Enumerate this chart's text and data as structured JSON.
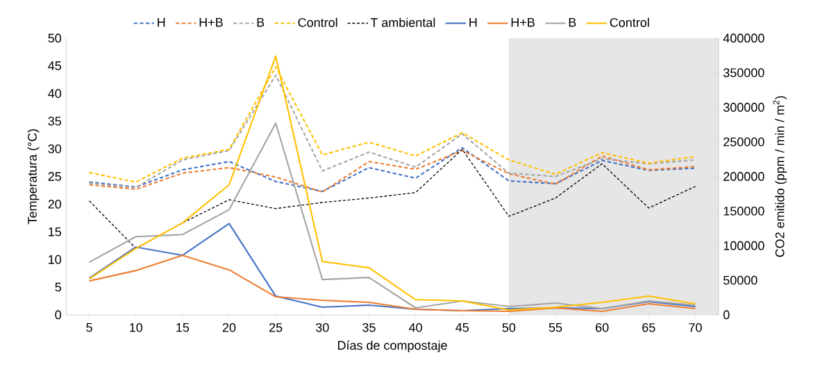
{
  "chart_data": {
    "type": "line",
    "xlabel": "Días de compostaje",
    "ylabel": "Temperatura (°C)",
    "y2label": "CO2 emitido (ppm / min / m$^{2}$)",
    "x": [
      5,
      10,
      15,
      20,
      25,
      30,
      35,
      40,
      45,
      50,
      55,
      60,
      65,
      70
    ],
    "xlim": [
      2.5,
      72.5
    ],
    "xticks": [
      5,
      10,
      15,
      20,
      25,
      30,
      35,
      40,
      45,
      50,
      55,
      60,
      65,
      70
    ],
    "ylim": [
      0,
      50
    ],
    "yticks": [
      0,
      5,
      10,
      15,
      20,
      25,
      30,
      35,
      40,
      45,
      50
    ],
    "y2lim": [
      0,
      400000
    ],
    "y2ticks": [
      0,
      50000,
      100000,
      150000,
      200000,
      250000,
      300000,
      350000,
      400000
    ],
    "grid": false,
    "legend": "top",
    "marker": "none",
    "bands": [
      {
        "axis": "x",
        "from": 50,
        "to": 72.5,
        "color": "#e7e6e6"
      }
    ],
    "series": [
      {
        "name": "H",
        "color": "#4472c4",
        "line_style": "dashed",
        "values": [
          24.0,
          23.1,
          26.2,
          27.7,
          24.1,
          22.3,
          26.6,
          24.7,
          30.2,
          24.2,
          23.7,
          27.9,
          26.1,
          26.5
        ]
      },
      {
        "name": "H+B",
        "color": "#ed7d31",
        "line_style": "dashed",
        "values": [
          23.5,
          22.7,
          25.6,
          26.6,
          24.9,
          22.2,
          27.7,
          26.3,
          29.7,
          25.5,
          23.6,
          28.7,
          26.2,
          26.8
        ]
      },
      {
        "name": "B",
        "color": "#a5a5a5",
        "line_style": "dashed",
        "values": [
          23.8,
          23.0,
          28.0,
          29.7,
          43.3,
          26.0,
          29.4,
          26.7,
          32.7,
          25.6,
          25.0,
          28.2,
          27.3,
          28.0
        ]
      },
      {
        "name": "Control",
        "color": "#ffc000",
        "line_style": "dashed",
        "values": [
          25.7,
          24.0,
          28.3,
          29.9,
          44.8,
          28.9,
          31.2,
          28.7,
          32.9,
          28.0,
          25.4,
          29.3,
          27.4,
          28.6
        ]
      },
      {
        "name": "T ambiental",
        "color": "#000000",
        "line_style": "dotted",
        "values": [
          20.6,
          12.0,
          16.6,
          20.8,
          19.2,
          20.3,
          21.1,
          22.1,
          29.9,
          17.8,
          21.1,
          27.3,
          19.3,
          23.2
        ]
      },
      {
        "name": "H",
        "color": "#4472c4",
        "line_style": "solid",
        "axis": "y2",
        "values": [
          53000,
          98000,
          86000,
          132000,
          27000,
          11000,
          14000,
          8000,
          6000,
          9000,
          10000,
          9000,
          19000,
          12000
        ]
      },
      {
        "name": "H+B",
        "color": "#ed7d31",
        "line_style": "solid",
        "axis": "y2",
        "values": [
          49000,
          64000,
          86000,
          65000,
          26000,
          21000,
          18000,
          8000,
          6000,
          5000,
          10000,
          5000,
          16000,
          9000
        ]
      },
      {
        "name": "B",
        "color": "#a5a5a5",
        "line_style": "solid",
        "axis": "y2",
        "values": [
          76000,
          113000,
          116000,
          152000,
          277000,
          51000,
          54000,
          10000,
          20000,
          12000,
          17000,
          9000,
          20000,
          14000
        ]
      },
      {
        "name": "Control",
        "color": "#ffc000",
        "line_style": "solid",
        "axis": "y2",
        "values": [
          52000,
          96000,
          133000,
          188000,
          374000,
          77000,
          68000,
          22000,
          20000,
          7000,
          11000,
          18000,
          27000,
          16000
        ]
      }
    ]
  }
}
